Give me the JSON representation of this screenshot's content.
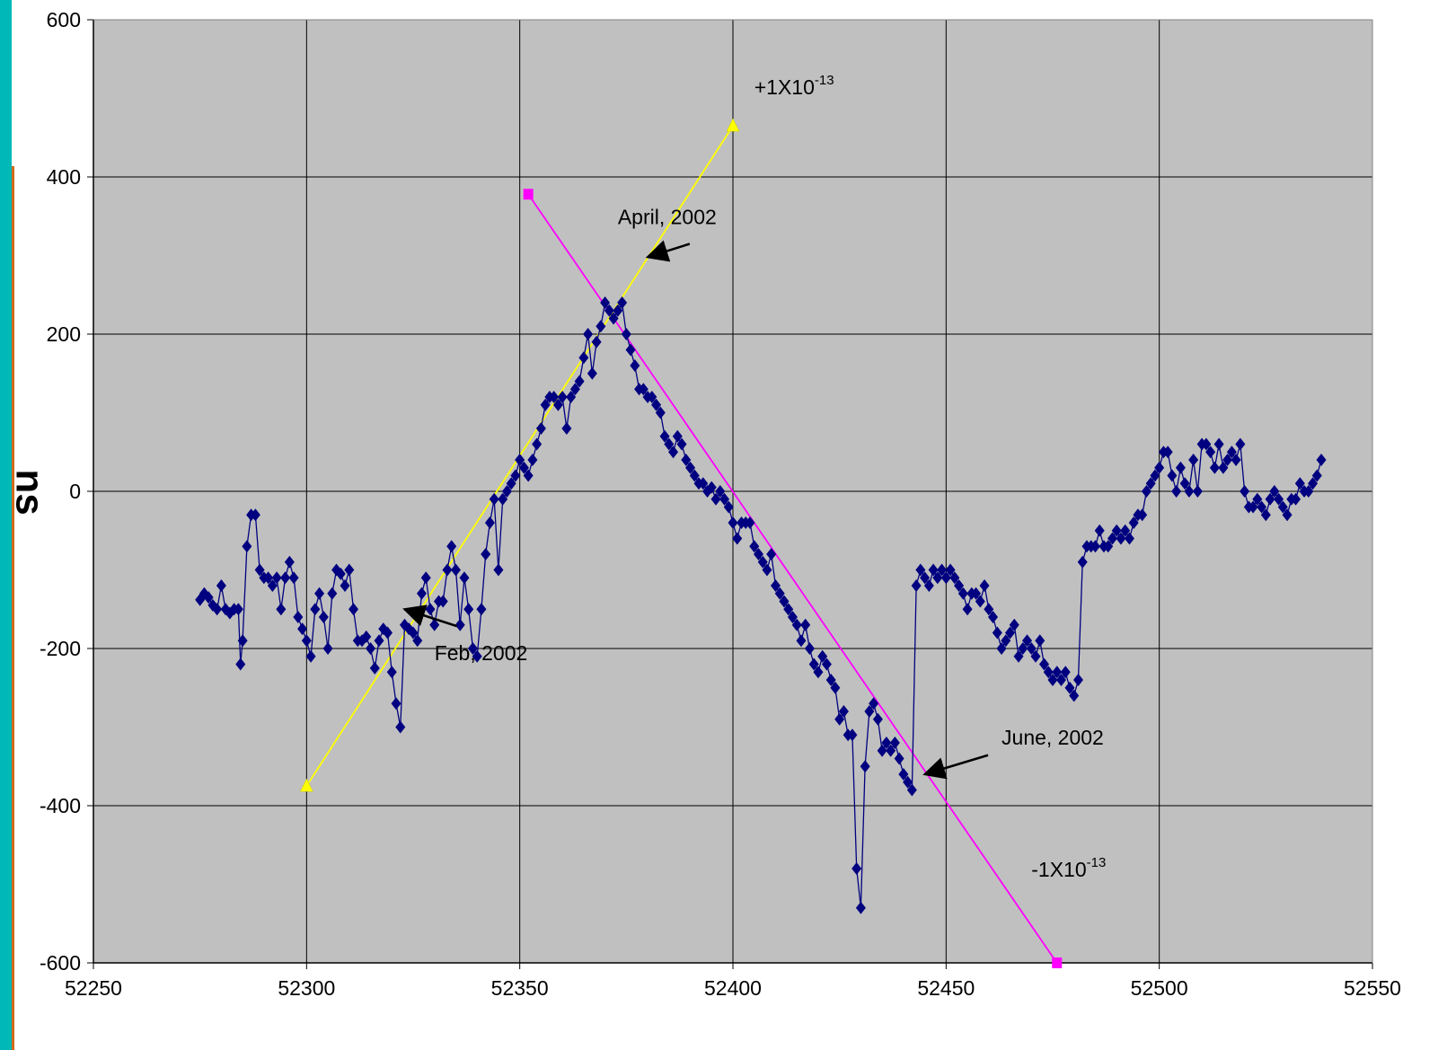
{
  "chart_data": {
    "type": "scatter",
    "title": "",
    "xlabel": "",
    "ylabel": "ns",
    "xlim": [
      52250,
      52550
    ],
    "ylim": [
      -600,
      600
    ],
    "x_ticks": [
      "52250",
      "52300",
      "52350",
      "52400",
      "52450",
      "52500",
      "52550"
    ],
    "y_ticks": [
      "600",
      "400",
      "200",
      "0",
      "-200",
      "-400",
      "-600"
    ],
    "grid": true,
    "series": [
      {
        "name": "",
        "color": "#000080",
        "marker": "diamond",
        "points": [
          [
            52275,
            -138
          ],
          [
            52276,
            -130
          ],
          [
            52277,
            -135
          ],
          [
            52278,
            -145
          ],
          [
            52279,
            -150
          ],
          [
            52280,
            -120
          ],
          [
            52281,
            -150
          ],
          [
            52282,
            -155
          ],
          [
            52283,
            -150
          ],
          [
            52284,
            -150
          ],
          [
            52284.5,
            -220
          ],
          [
            52285,
            -190
          ],
          [
            52286,
            -70
          ],
          [
            52287,
            -30
          ],
          [
            52288,
            -30
          ],
          [
            52289,
            -100
          ],
          [
            52290,
            -110
          ],
          [
            52291,
            -110
          ],
          [
            52292,
            -120
          ],
          [
            52293,
            -110
          ],
          [
            52294,
            -150
          ],
          [
            52295,
            -110
          ],
          [
            52296,
            -90
          ],
          [
            52297,
            -110
          ],
          [
            52298,
            -160
          ],
          [
            52299,
            -175
          ],
          [
            52300,
            -190
          ],
          [
            52301,
            -210
          ],
          [
            52302,
            -150
          ],
          [
            52303,
            -130
          ],
          [
            52304,
            -160
          ],
          [
            52305,
            -200
          ],
          [
            52306,
            -130
          ],
          [
            52307,
            -100
          ],
          [
            52308,
            -105
          ],
          [
            52309,
            -120
          ],
          [
            52310,
            -100
          ],
          [
            52311,
            -150
          ],
          [
            52312,
            -190
          ],
          [
            52313,
            -190
          ],
          [
            52314,
            -185
          ],
          [
            52315,
            -200
          ],
          [
            52316,
            -225
          ],
          [
            52317,
            -190
          ],
          [
            52318,
            -175
          ],
          [
            52319,
            -180
          ],
          [
            52320,
            -230
          ],
          [
            52321,
            -270
          ],
          [
            52322,
            -300
          ],
          [
            52323,
            -170
          ],
          [
            52324,
            -175
          ],
          [
            52325,
            -180
          ],
          [
            52326,
            -190
          ],
          [
            52327,
            -130
          ],
          [
            52328,
            -110
          ],
          [
            52329,
            -150
          ],
          [
            52330,
            -170
          ],
          [
            52331,
            -140
          ],
          [
            52332,
            -140
          ],
          [
            52333,
            -100
          ],
          [
            52334,
            -70
          ],
          [
            52335,
            -100
          ],
          [
            52336,
            -170
          ],
          [
            52337,
            -110
          ],
          [
            52338,
            -150
          ],
          [
            52339,
            -200
          ],
          [
            52340,
            -210
          ],
          [
            52341,
            -150
          ],
          [
            52342,
            -80
          ],
          [
            52343,
            -40
          ],
          [
            52344,
            -10
          ],
          [
            52345,
            -100
          ],
          [
            52346,
            -10
          ],
          [
            52347,
            0
          ],
          [
            52348,
            10
          ],
          [
            52349,
            20
          ],
          [
            52350,
            40
          ],
          [
            52351,
            30
          ],
          [
            52352,
            20
          ],
          [
            52353,
            40
          ],
          [
            52354,
            60
          ],
          [
            52355,
            80
          ],
          [
            52356,
            110
          ],
          [
            52357,
            120
          ],
          [
            52358,
            120
          ],
          [
            52359,
            110
          ],
          [
            52360,
            120
          ],
          [
            52361,
            80
          ],
          [
            52362,
            120
          ],
          [
            52363,
            130
          ],
          [
            52364,
            140
          ],
          [
            52365,
            170
          ],
          [
            52366,
            200
          ],
          [
            52367,
            150
          ],
          [
            52368,
            190
          ],
          [
            52369,
            210
          ],
          [
            52370,
            240
          ],
          [
            52371,
            230
          ],
          [
            52372,
            220
          ],
          [
            52373,
            230
          ],
          [
            52374,
            240
          ],
          [
            52375,
            200
          ],
          [
            52376,
            180
          ],
          [
            52377,
            160
          ],
          [
            52378,
            130
          ],
          [
            52379,
            130
          ],
          [
            52380,
            120
          ],
          [
            52381,
            120
          ],
          [
            52382,
            110
          ],
          [
            52383,
            100
          ],
          [
            52384,
            70
          ],
          [
            52385,
            60
          ],
          [
            52386,
            50
          ],
          [
            52387,
            70
          ],
          [
            52388,
            60
          ],
          [
            52389,
            40
          ],
          [
            52390,
            30
          ],
          [
            52391,
            20
          ],
          [
            52392,
            10
          ],
          [
            52393,
            10
          ],
          [
            52394,
            0
          ],
          [
            52395,
            5
          ],
          [
            52396,
            -10
          ],
          [
            52397,
            0
          ],
          [
            52398,
            -10
          ],
          [
            52399,
            -20
          ],
          [
            52400,
            -40
          ],
          [
            52401,
            -60
          ],
          [
            52402,
            -40
          ],
          [
            52403,
            -40
          ],
          [
            52404,
            -40
          ],
          [
            52405,
            -70
          ],
          [
            52406,
            -80
          ],
          [
            52407,
            -90
          ],
          [
            52408,
            -100
          ],
          [
            52409,
            -80
          ],
          [
            52410,
            -120
          ],
          [
            52411,
            -130
          ],
          [
            52412,
            -140
          ],
          [
            52413,
            -150
          ],
          [
            52414,
            -160
          ],
          [
            52415,
            -170
          ],
          [
            52416,
            -190
          ],
          [
            52417,
            -170
          ],
          [
            52418,
            -200
          ],
          [
            52419,
            -220
          ],
          [
            52420,
            -230
          ],
          [
            52421,
            -210
          ],
          [
            52422,
            -220
          ],
          [
            52423,
            -240
          ],
          [
            52424,
            -250
          ],
          [
            52425,
            -290
          ],
          [
            52426,
            -280
          ],
          [
            52427,
            -310
          ],
          [
            52428,
            -310
          ],
          [
            52429,
            -480
          ],
          [
            52430,
            -530
          ],
          [
            52431,
            -350
          ],
          [
            52432,
            -280
          ],
          [
            52433,
            -270
          ],
          [
            52434,
            -290
          ],
          [
            52435,
            -330
          ],
          [
            52436,
            -320
          ],
          [
            52437,
            -330
          ],
          [
            52438,
            -320
          ],
          [
            52439,
            -340
          ],
          [
            52440,
            -360
          ],
          [
            52441,
            -370
          ],
          [
            52442,
            -380
          ],
          [
            52443,
            -120
          ],
          [
            52444,
            -100
          ],
          [
            52445,
            -110
          ],
          [
            52446,
            -120
          ],
          [
            52447,
            -100
          ],
          [
            52448,
            -110
          ],
          [
            52449,
            -100
          ],
          [
            52450,
            -110
          ],
          [
            52451,
            -100
          ],
          [
            52452,
            -110
          ],
          [
            52453,
            -120
          ],
          [
            52454,
            -130
          ],
          [
            52455,
            -150
          ],
          [
            52456,
            -130
          ],
          [
            52457,
            -130
          ],
          [
            52458,
            -140
          ],
          [
            52459,
            -120
          ],
          [
            52460,
            -150
          ],
          [
            52461,
            -160
          ],
          [
            52462,
            -180
          ],
          [
            52463,
            -200
          ],
          [
            52464,
            -190
          ],
          [
            52465,
            -180
          ],
          [
            52466,
            -170
          ],
          [
            52467,
            -210
          ],
          [
            52468,
            -200
          ],
          [
            52469,
            -190
          ],
          [
            52470,
            -200
          ],
          [
            52471,
            -210
          ],
          [
            52472,
            -190
          ],
          [
            52473,
            -220
          ],
          [
            52474,
            -230
          ],
          [
            52475,
            -240
          ],
          [
            52476,
            -230
          ],
          [
            52477,
            -240
          ],
          [
            52478,
            -230
          ],
          [
            52479,
            -250
          ],
          [
            52480,
            -260
          ],
          [
            52481,
            -240
          ],
          [
            52482,
            -90
          ],
          [
            52483,
            -70
          ],
          [
            52484,
            -70
          ],
          [
            52485,
            -70
          ],
          [
            52486,
            -50
          ],
          [
            52487,
            -70
          ],
          [
            52488,
            -70
          ],
          [
            52489,
            -60
          ],
          [
            52490,
            -50
          ],
          [
            52491,
            -60
          ],
          [
            52492,
            -50
          ],
          [
            52493,
            -60
          ],
          [
            52494,
            -40
          ],
          [
            52495,
            -30
          ],
          [
            52496,
            -30
          ],
          [
            52497,
            0
          ],
          [
            52498,
            10
          ],
          [
            52499,
            20
          ],
          [
            52500,
            30
          ],
          [
            52501,
            50
          ],
          [
            52502,
            50
          ],
          [
            52503,
            20
          ],
          [
            52504,
            0
          ],
          [
            52505,
            30
          ],
          [
            52506,
            10
          ],
          [
            52507,
            0
          ],
          [
            52508,
            40
          ],
          [
            52509,
            0
          ],
          [
            52510,
            60
          ],
          [
            52511,
            60
          ],
          [
            52512,
            50
          ],
          [
            52513,
            30
          ],
          [
            52514,
            60
          ],
          [
            52515,
            30
          ],
          [
            52516,
            40
          ],
          [
            52517,
            50
          ],
          [
            52518,
            40
          ],
          [
            52519,
            60
          ],
          [
            52520,
            0
          ],
          [
            52521,
            -20
          ],
          [
            52522,
            -20
          ],
          [
            52523,
            -10
          ],
          [
            52524,
            -20
          ],
          [
            52525,
            -30
          ],
          [
            52526,
            -10
          ],
          [
            52527,
            0
          ],
          [
            52528,
            -10
          ],
          [
            52529,
            -20
          ],
          [
            52530,
            -30
          ],
          [
            52531,
            -10
          ],
          [
            52532,
            -10
          ],
          [
            52533,
            10
          ],
          [
            52534,
            0
          ],
          [
            52535,
            0
          ],
          [
            52536,
            10
          ],
          [
            52537,
            20
          ],
          [
            52538,
            40
          ]
        ]
      },
      {
        "name": "",
        "color": "#ffff00",
        "marker": "triangle",
        "points": [
          [
            52300,
            -375
          ],
          [
            52400,
            465
          ]
        ]
      },
      {
        "name": "",
        "color": "#ff00ff",
        "marker": "square",
        "points": [
          [
            52352,
            378
          ],
          [
            52476,
            -600
          ]
        ]
      }
    ],
    "annotations": [
      {
        "label": "April, 2002",
        "x": 52373,
        "y": 340,
        "arrow_to": [
          52380,
          298
        ]
      },
      {
        "label": "Feb, 2002",
        "x": 52330,
        "y": -215,
        "arrow_to": [
          52323,
          -150
        ]
      },
      {
        "label": "June, 2002",
        "x": 52463,
        "y": -322,
        "arrow_to": [
          52445,
          -360
        ]
      },
      {
        "label": "+1X10",
        "superscript": "-13",
        "x": 52405,
        "y": 505
      },
      {
        "label": "-1X10",
        "superscript": "-13",
        "x": 52470,
        "y": -490
      }
    ]
  }
}
